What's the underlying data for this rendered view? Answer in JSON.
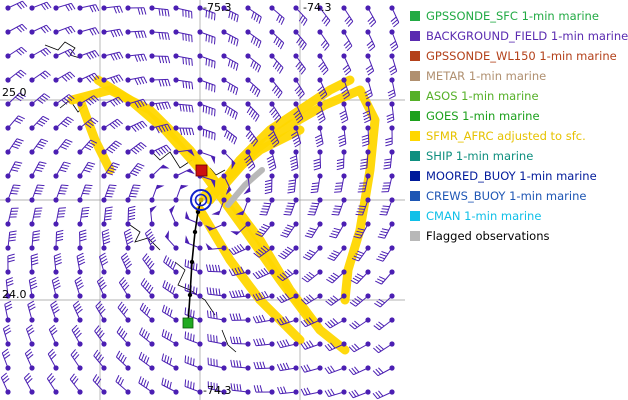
{
  "map": {
    "lon_labels": [
      "-75.3",
      "-74.3"
    ],
    "lat_labels": [
      "25.0",
      "24.0"
    ],
    "bottom_label": "-74.3",
    "colors": {
      "wind_barb": "#4b1fb3",
      "sfmr_track": "#ffd700",
      "flagged": "#b8b8b8",
      "grid": "#9a9a9a",
      "coast": "#000000",
      "track": "#000000",
      "start_marker": "#22aa22",
      "end_marker": "#cc1111",
      "center_marker": "#1122cc"
    }
  },
  "legend": {
    "items": [
      {
        "label": "GPSSONDE_SFC 1-min marine",
        "color": "#22aa44"
      },
      {
        "label": "BACKGROUND_FIELD 1-min marine",
        "color": "#5a2bb0"
      },
      {
        "label": "GPSSONDE_WL150 1-min marine",
        "color": "#b3411a"
      },
      {
        "label": "METAR 1-min marine",
        "color": "#b09070"
      },
      {
        "label": "ASOS 1-min marine",
        "color": "#55b028"
      },
      {
        "label": "GOES 1-min marine",
        "color": "#1ca01c"
      },
      {
        "label": "SFMR_AFRC adjusted to sfc.",
        "color": "#ffd700"
      },
      {
        "label": "SHIP 1-min marine",
        "color": "#0f8f7f"
      },
      {
        "label": "MOORED_BUOY 1-min marine",
        "color": "#001a9a"
      },
      {
        "label": "CREWS_BUOY 1-min marine",
        "color": "#1e56b4"
      },
      {
        "label": "CMAN 1-min marine",
        "color": "#10c0e8"
      },
      {
        "label": "Flagged observations",
        "color": "#b8b8b8"
      }
    ]
  }
}
